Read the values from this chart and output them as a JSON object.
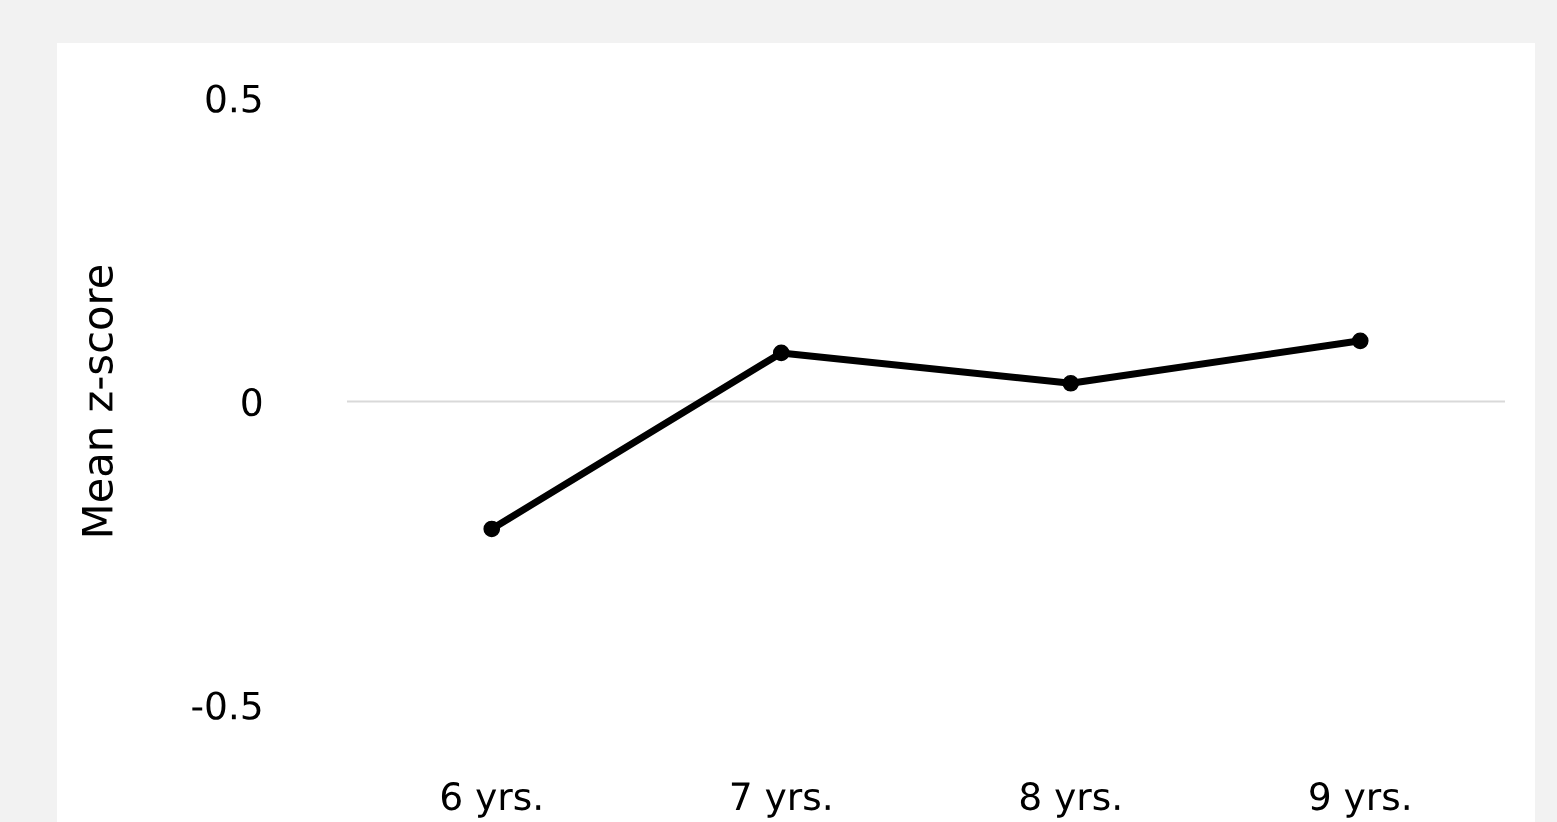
{
  "chart_data": {
    "type": "line",
    "ylabel": "Mean z-score",
    "categories": [
      "6 yrs.",
      "7 yrs.",
      "8 yrs.",
      "9 yrs."
    ],
    "series": [
      {
        "color": "#000000",
        "values": [
          -0.21,
          0.08,
          0.03,
          0.1
        ]
      }
    ],
    "ylim": [
      -0.5,
      0.5
    ],
    "yticks": [
      -0.5,
      0,
      0.5
    ],
    "marker": "circle",
    "line_style": "solid",
    "ref_lines": [
      {
        "axis": "y",
        "value": 0,
        "color": "#d9d9d9"
      }
    ]
  }
}
